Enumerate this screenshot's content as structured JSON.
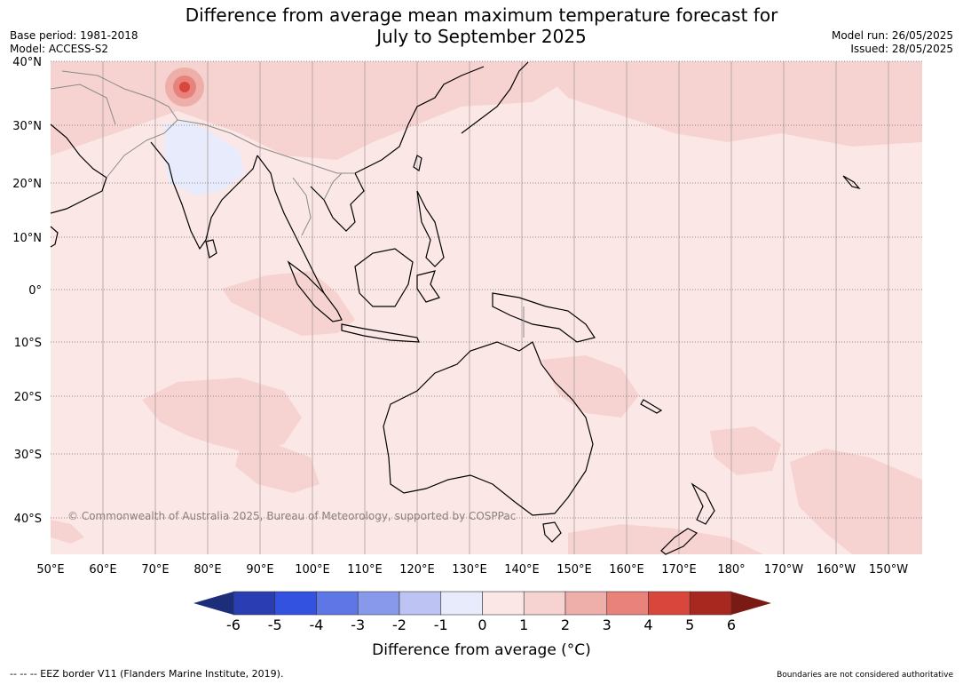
{
  "title_line1": "Difference from average mean maximum temperature forecast for",
  "title_line2": "July to September 2025",
  "base_period": "Base period: 1981-2018",
  "model": "Model: ACCESS-S2",
  "model_run": "Model run: 26/05/2025",
  "issued": "Issued: 28/05/2025",
  "copyright": "© Commonwealth of Australia 2025, Bureau of Meteorology, supported by COSPPac",
  "lat_labels": [
    "40°N",
    "30°N",
    "20°N",
    "10°N",
    "0°",
    "10°S",
    "20°S",
    "30°S",
    "40°S"
  ],
  "lon_labels": [
    "50°E",
    "60°E",
    "70°E",
    "80°E",
    "90°E",
    "100°E",
    "110°E",
    "120°E",
    "130°E",
    "140°E",
    "150°E",
    "160°E",
    "170°E",
    "180°",
    "170°W",
    "160°W",
    "150°W"
  ],
  "colorbar": {
    "title": "Difference from average (°C)",
    "ticks": [
      "-6",
      "-5",
      "-4",
      "-3",
      "-2",
      "-1",
      "0",
      "1",
      "2",
      "3",
      "4",
      "5",
      "6"
    ],
    "colors": [
      "#1c2e7a",
      "#2a3db3",
      "#3352e0",
      "#5e76e6",
      "#8899ec",
      "#bdc4f4",
      "#e8ebfb",
      "#fbe8e6",
      "#f6d3d0",
      "#eeaea9",
      "#e8827b",
      "#d9463b",
      "#a82820",
      "#7a1a14"
    ]
  },
  "footer_left": "-- -- -- EEZ border V11 (Flanders Marine Institute, 2019).",
  "footer_right": "Boundaries are not considered authoritative"
}
